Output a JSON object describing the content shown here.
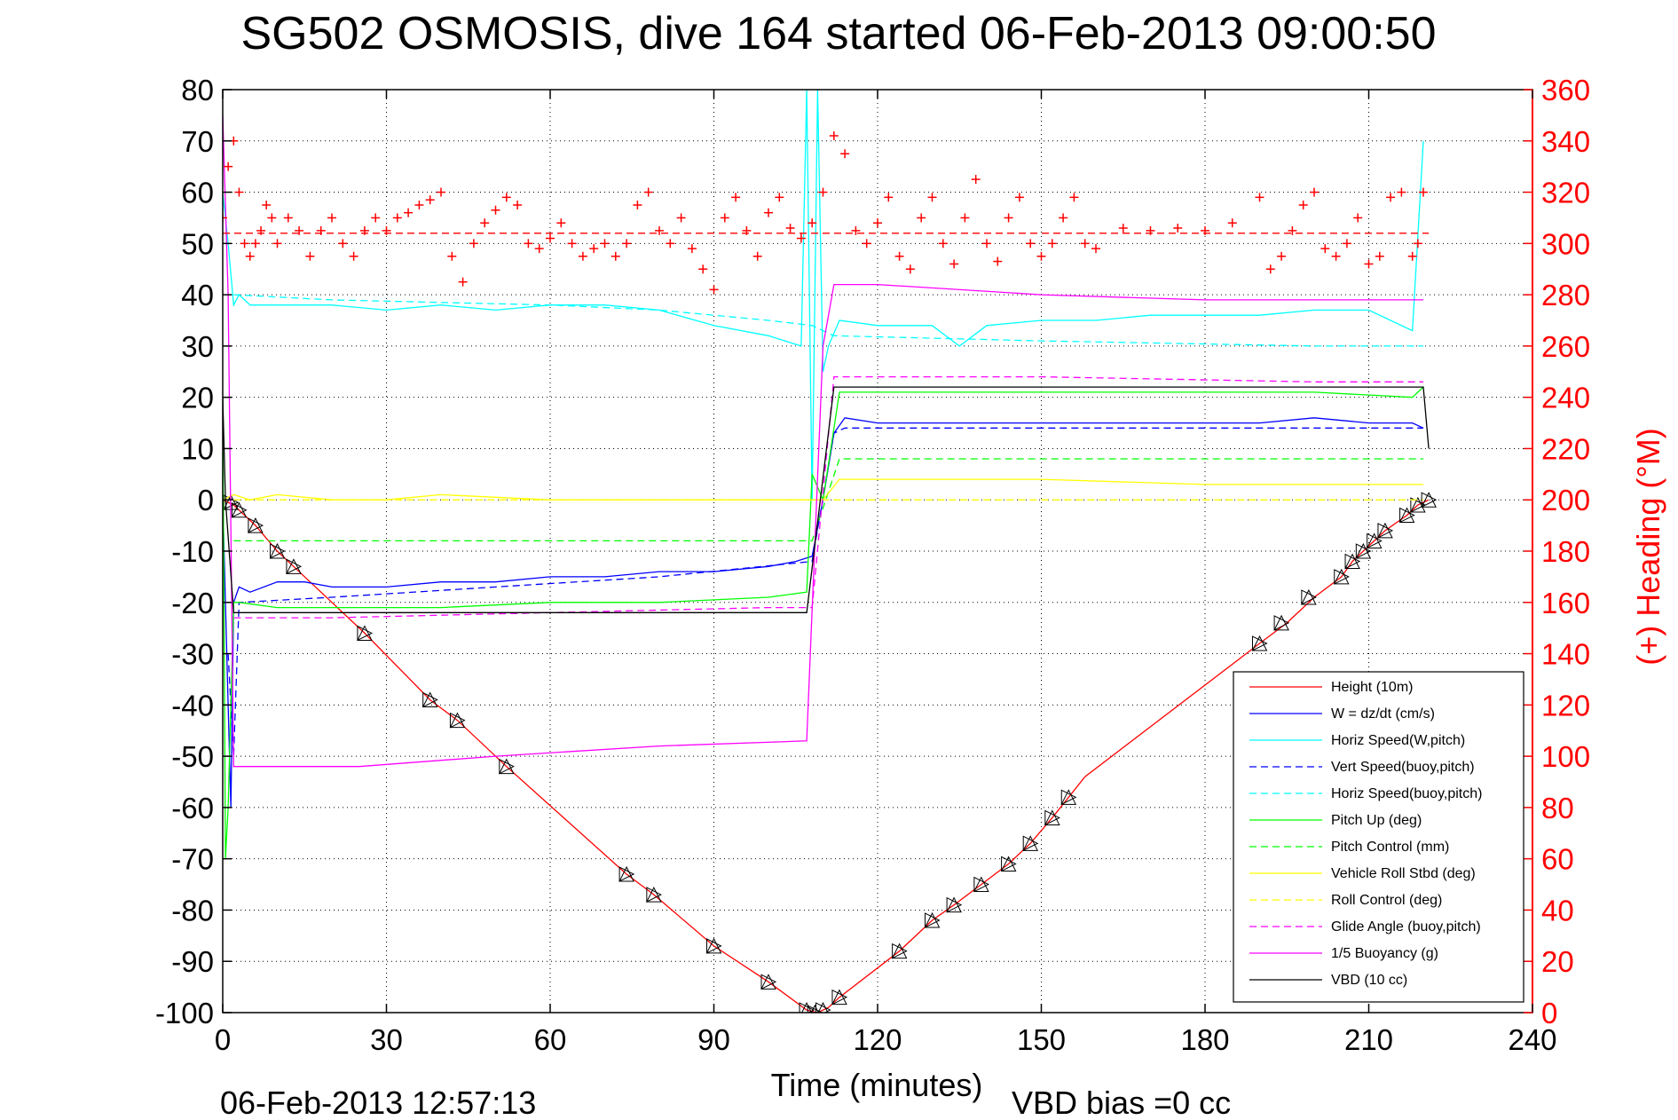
{
  "chart_data": {
    "type": "line",
    "title": "SG502 OSMOSIS, dive 164 started 06-Feb-2013 09:00:50",
    "xlabel": "Time (minutes)",
    "ylabel": "",
    "y2label": "(+) Heading (°M)",
    "footer_left": "06-Feb-2013 12:57:13",
    "footer_right": "VBD bias =0 cc",
    "xlim": [
      0,
      240
    ],
    "ylim": [
      -100,
      80
    ],
    "y2lim": [
      0,
      360
    ],
    "xticks": [
      "0",
      "30",
      "60",
      "90",
      "120",
      "150",
      "180",
      "210",
      "240"
    ],
    "yticks": [
      "80",
      "70",
      "60",
      "50",
      "40",
      "30",
      "20",
      "10",
      "0",
      "-10",
      "-20",
      "-30",
      "-40",
      "-50",
      "-60",
      "-70",
      "-80",
      "-90",
      "-100"
    ],
    "y2ticks": [
      "360",
      "340",
      "320",
      "300",
      "280",
      "260",
      "240",
      "220",
      "200",
      "180",
      "160",
      "140",
      "120",
      "100",
      "80",
      "60",
      "40",
      "20",
      "0"
    ],
    "grid": true,
    "legend_position": "bottom-right",
    "legend": [
      {
        "label": "Height (10m)",
        "color": "#ff0000",
        "dash": "solid"
      },
      {
        "label": "W = dz/dt (cm/s)",
        "color": "#0000ff",
        "dash": "solid"
      },
      {
        "label": "Horiz Speed(W,pitch)",
        "color": "#00ffff",
        "dash": "solid"
      },
      {
        "label": "Vert Speed(buoy,pitch)",
        "color": "#0000ff",
        "dash": "dashed"
      },
      {
        "label": "Horiz Speed(buoy,pitch)",
        "color": "#00ffff",
        "dash": "dashed"
      },
      {
        "label": "Pitch Up (deg)",
        "color": "#00ff00",
        "dash": "solid"
      },
      {
        "label": "Pitch Control (mm)",
        "color": "#00ff00",
        "dash": "dashed"
      },
      {
        "label": "Vehicle Roll Stbd (deg)",
        "color": "#ffff00",
        "dash": "solid"
      },
      {
        "label": "Roll Control (deg)",
        "color": "#ffff00",
        "dash": "dashed"
      },
      {
        "label": "Glide Angle (buoy,pitch)",
        "color": "#ff00ff",
        "dash": "dashed"
      },
      {
        "label": "1/5 Buoyancy (g)",
        "color": "#ff00ff",
        "dash": "solid"
      },
      {
        "label": "VBD (10 cc)",
        "color": "#000000",
        "dash": "solid"
      }
    ],
    "series": [
      {
        "name": "Height (10m)",
        "axis": "left",
        "color": "#ff0000",
        "dash": "solid",
        "marker": "none",
        "x": [
          0,
          2,
          6,
          10,
          13,
          26,
          38,
          43,
          52,
          74,
          79,
          90,
          100,
          107,
          109,
          111,
          113,
          124,
          130,
          134,
          139,
          144,
          148,
          152,
          155,
          158,
          190,
          195,
          200,
          205,
          207,
          209,
          211,
          213,
          217,
          219,
          221
        ],
        "y": [
          0,
          -1,
          -5,
          -10,
          -13,
          -26,
          -39,
          -43,
          -52,
          -73,
          -77,
          -87,
          -94,
          -99.5,
          -100,
          -99,
          -97,
          -88,
          -82,
          -79,
          -75,
          -71,
          -67,
          -62,
          -58,
          -54,
          -28,
          -24,
          -19,
          -15,
          -12,
          -10,
          -8,
          -6,
          -3,
          -1,
          0
        ]
      },
      {
        "name": "Dive markers",
        "axis": "left",
        "color": "#000000",
        "dash": "none",
        "marker": "triangle",
        "x": [
          1.5,
          3,
          6,
          10,
          13,
          26,
          38,
          43,
          52,
          74,
          79,
          90,
          100,
          107,
          108.5,
          110,
          113,
          124,
          130,
          134,
          139,
          144,
          148,
          152,
          155,
          190,
          194,
          199,
          205,
          207,
          209,
          211,
          213,
          217,
          219,
          221
        ],
        "y": [
          -0.5,
          -2,
          -5,
          -10,
          -13,
          -26,
          -39,
          -43,
          -52,
          -73,
          -77,
          -87,
          -94,
          -99.5,
          -100,
          -99.5,
          -97,
          -88,
          -82,
          -79,
          -75,
          -71,
          -67,
          -62,
          -58,
          -28,
          -24,
          -19,
          -15,
          -12,
          -10,
          -8,
          -6,
          -3,
          -1,
          0
        ]
      },
      {
        "name": "W = dz/dt (cm/s)",
        "axis": "left",
        "color": "#0000ff",
        "dash": "solid",
        "marker": "none",
        "x": [
          0,
          1,
          1.5,
          2,
          3,
          5,
          10,
          15,
          20,
          30,
          40,
          50,
          60,
          70,
          80,
          90,
          100,
          105,
          108,
          110,
          112,
          114,
          120,
          130,
          140,
          150,
          160,
          170,
          180,
          190,
          200,
          210,
          218,
          220
        ],
        "y": [
          0,
          -40,
          -60,
          -20,
          -17,
          -18,
          -16,
          -16,
          -17,
          -17,
          -16,
          -16,
          -15,
          -15,
          -14,
          -14,
          -13,
          -12,
          -11,
          0,
          13,
          16,
          15,
          15,
          15,
          15,
          15,
          15,
          15,
          15,
          16,
          15,
          15,
          14
        ]
      },
      {
        "name": "Horiz Speed(W,pitch)",
        "axis": "left",
        "color": "#00ffff",
        "dash": "solid",
        "marker": "none",
        "x": [
          0,
          1,
          2,
          3,
          5,
          10,
          20,
          30,
          40,
          50,
          60,
          70,
          80,
          90,
          100,
          106,
          107,
          108,
          109,
          110,
          111,
          113,
          120,
          130,
          135,
          140,
          150,
          160,
          170,
          180,
          190,
          200,
          210,
          218,
          220
        ],
        "y": [
          60,
          50,
          38,
          40,
          38,
          38,
          38,
          37,
          38,
          37,
          38,
          38,
          37,
          34,
          32,
          30,
          80,
          0,
          80,
          25,
          30,
          35,
          34,
          34,
          30,
          34,
          35,
          35,
          36,
          36,
          36,
          37,
          37,
          33,
          70
        ]
      },
      {
        "name": "Vert Speed(buoy,pitch)",
        "axis": "left",
        "color": "#0000ff",
        "dash": "dashed",
        "marker": "none",
        "x": [
          1,
          2,
          3,
          20,
          50,
          80,
          108,
          112,
          114,
          150,
          200,
          220
        ],
        "y": [
          -30,
          -50,
          -20,
          -19,
          -17,
          -15,
          -12,
          13,
          14,
          14,
          14,
          14
        ]
      },
      {
        "name": "Horiz Speed(buoy,pitch)",
        "axis": "left",
        "color": "#00ffff",
        "dash": "dashed",
        "marker": "none",
        "x": [
          2,
          20,
          60,
          80,
          100,
          108,
          112,
          150,
          200,
          220
        ],
        "y": [
          40,
          39,
          38,
          37,
          35,
          34,
          32,
          31,
          30,
          30
        ]
      },
      {
        "name": "Pitch Up (deg)",
        "axis": "left",
        "color": "#00ff00",
        "dash": "solid",
        "marker": "none",
        "x": [
          0,
          0.5,
          1,
          2,
          3,
          10,
          20,
          40,
          60,
          80,
          100,
          107,
          108,
          110,
          113,
          120,
          150,
          180,
          200,
          218,
          220
        ],
        "y": [
          20,
          -70,
          -60,
          -20,
          -20,
          -21,
          -21,
          -21,
          -20,
          -20,
          -19,
          -18,
          5,
          0,
          21,
          21,
          21,
          21,
          21,
          20,
          22
        ]
      },
      {
        "name": "Pitch Control (mm)",
        "axis": "left",
        "color": "#00ff00",
        "dash": "dashed",
        "marker": "none",
        "x": [
          2,
          108,
          113,
          220
        ],
        "y": [
          -8,
          -8,
          8,
          8
        ]
      },
      {
        "name": "Vehicle Roll Stbd (deg)",
        "axis": "left",
        "color": "#ffff00",
        "dash": "solid",
        "marker": "none",
        "x": [
          0,
          2,
          5,
          10,
          20,
          30,
          40,
          60,
          80,
          100,
          107,
          110,
          113,
          120,
          150,
          180,
          200,
          220
        ],
        "y": [
          0,
          1,
          0,
          1,
          0,
          0,
          1,
          0,
          0,
          0,
          0,
          0,
          4,
          4,
          4,
          3,
          3,
          3
        ]
      },
      {
        "name": "Roll Control (deg)",
        "axis": "left",
        "color": "#ffff00",
        "dash": "dashed",
        "marker": "none",
        "x": [
          2,
          220
        ],
        "y": [
          0,
          0
        ]
      },
      {
        "name": "Glide Angle (buoy,pitch)",
        "axis": "left",
        "color": "#ff00ff",
        "dash": "dashed",
        "marker": "none",
        "x": [
          2,
          20,
          60,
          100,
          108,
          112,
          150,
          200,
          220
        ],
        "y": [
          -23,
          -23,
          -22,
          -21,
          -21,
          24,
          24,
          23,
          23
        ]
      },
      {
        "name": "1/5 Buoyancy (g)",
        "axis": "left",
        "color": "#ff00ff",
        "dash": "solid",
        "marker": "none",
        "x": [
          0,
          1,
          2,
          25,
          50,
          80,
          107,
          110,
          112,
          120,
          150,
          180,
          200,
          220
        ],
        "y": [
          75,
          40,
          -52,
          -52,
          -50,
          -48,
          -47,
          30,
          42,
          42,
          40,
          39,
          39,
          39
        ]
      },
      {
        "name": "VBD (10 cc)",
        "axis": "left",
        "color": "#000000",
        "dash": "solid",
        "marker": "none",
        "x": [
          0,
          0.5,
          2,
          10,
          50,
          100,
          107,
          112,
          150,
          200,
          220,
          221
        ],
        "y": [
          20,
          0,
          -22,
          -22,
          -22,
          -22,
          -22,
          22,
          22,
          22,
          22,
          10
        ]
      },
      {
        "name": "Heading (+)",
        "axis": "right",
        "color": "#ff0000",
        "dash": "none",
        "marker": "plus",
        "x": [
          0,
          1,
          2,
          3,
          4,
          5,
          6,
          7,
          8,
          9,
          10,
          12,
          14,
          16,
          18,
          20,
          22,
          24,
          26,
          28,
          30,
          32,
          34,
          36,
          38,
          40,
          42,
          44,
          46,
          48,
          50,
          52,
          54,
          56,
          58,
          60,
          62,
          64,
          66,
          68,
          70,
          72,
          74,
          76,
          78,
          80,
          82,
          84,
          86,
          88,
          90,
          92,
          94,
          96,
          98,
          100,
          102,
          104,
          106,
          108,
          110,
          112,
          114,
          116,
          118,
          120,
          122,
          124,
          126,
          128,
          130,
          132,
          134,
          136,
          138,
          140,
          142,
          144,
          146,
          148,
          150,
          152,
          154,
          156,
          158,
          160,
          165,
          170,
          175,
          180,
          185,
          190,
          192,
          194,
          196,
          198,
          200,
          202,
          204,
          206,
          208,
          210,
          212,
          214,
          216,
          218,
          219,
          220
        ],
        "y": [
          310,
          330,
          340,
          320,
          300,
          295,
          300,
          305,
          315,
          310,
          300,
          310,
          305,
          295,
          305,
          310,
          300,
          295,
          305,
          310,
          305,
          310,
          312,
          315,
          317,
          320,
          295,
          285,
          300,
          308,
          313,
          318,
          315,
          300,
          298,
          302,
          308,
          300,
          295,
          298,
          300,
          295,
          300,
          315,
          320,
          305,
          300,
          310,
          298,
          290,
          282,
          310,
          318,
          305,
          295,
          312,
          318,
          306,
          302,
          308,
          320,
          342,
          335,
          305,
          300,
          308,
          318,
          295,
          290,
          310,
          318,
          300,
          292,
          310,
          325,
          300,
          293,
          310,
          318,
          300,
          295,
          300,
          310,
          318,
          300,
          298,
          306,
          305,
          306,
          305,
          308,
          318,
          290,
          295,
          305,
          315,
          320,
          298,
          295,
          300,
          310,
          292,
          295,
          318,
          320,
          295,
          300,
          320
        ]
      },
      {
        "name": "Mean heading",
        "axis": "right",
        "color": "#ff0000",
        "dash": "dashed",
        "marker": "none",
        "x": [
          0,
          221
        ],
        "y": [
          304,
          304
        ]
      }
    ]
  }
}
